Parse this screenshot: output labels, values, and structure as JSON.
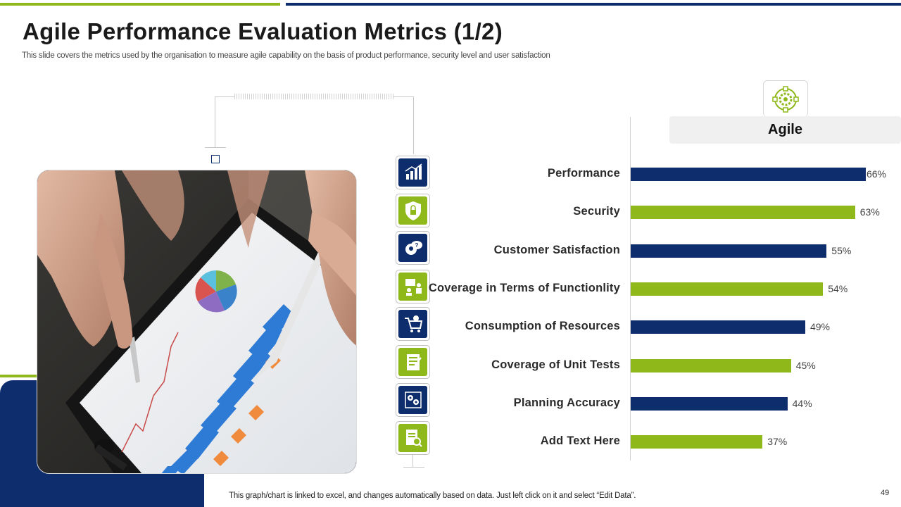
{
  "slide": {
    "title": "Agile Performance Evaluation Metrics (1/2)",
    "subtitle": "This slide covers the metrics used by the organisation to measure agile capability on the basis of product performance, security level and user satisfaction",
    "footer_note": "This graph/chart is linked to excel,  and changes automatically based on data. Just left click on it and select “Edit Data”.",
    "page_number": "49"
  },
  "colors": {
    "navy": "#0d2d6c",
    "green": "#8fb81a"
  },
  "icons": [
    {
      "name": "growth-chart-icon",
      "color": "navy"
    },
    {
      "name": "security-shield-icon",
      "color": "green"
    },
    {
      "name": "customer-feedback-icon",
      "color": "navy"
    },
    {
      "name": "team-presentation-icon",
      "color": "green"
    },
    {
      "name": "shopping-cart-icon",
      "color": "navy"
    },
    {
      "name": "checklist-icon",
      "color": "green"
    },
    {
      "name": "gears-settings-icon",
      "color": "navy"
    },
    {
      "name": "document-search-icon",
      "color": "green"
    }
  ],
  "chart_data": {
    "type": "bar",
    "orientation": "horizontal",
    "title": "Agile",
    "categories": [
      "Performance",
      "Security",
      "Customer Satisfaction",
      "Coverage in Terms of Functionlity",
      "Consumption of Resources",
      "Coverage of Unit Tests",
      "Planning Accuracy",
      "Add Text Here"
    ],
    "values": [
      66,
      63,
      55,
      54,
      49,
      45,
      44,
      37
    ],
    "value_labels": [
      "66%",
      "63%",
      "55%",
      "54%",
      "49%",
      "45%",
      "44%",
      "37%"
    ],
    "bar_colors": [
      "#0d2d6c",
      "#8fb81a",
      "#0d2d6c",
      "#8fb81a",
      "#0d2d6c",
      "#8fb81a",
      "#0d2d6c",
      "#8fb81a"
    ],
    "xlim": [
      0,
      100
    ],
    "grid": false,
    "legend": "none"
  }
}
